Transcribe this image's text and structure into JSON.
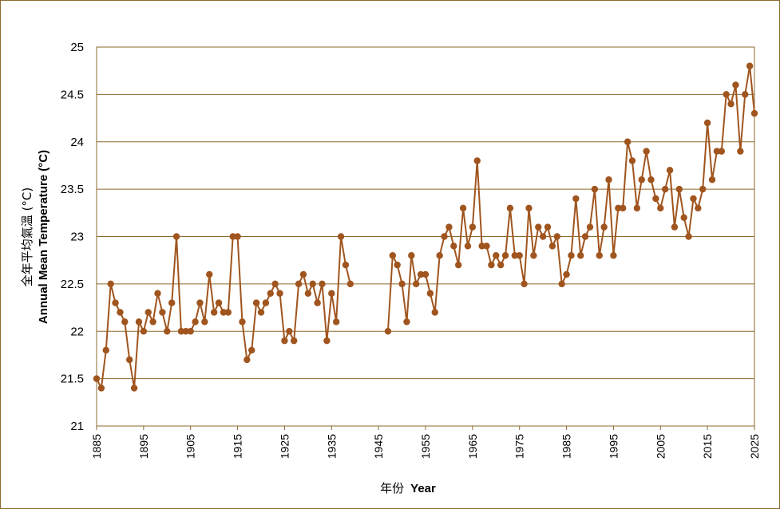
{
  "chart_data": {
    "type": "line",
    "xlabel_zh": "年份",
    "xlabel_en": "Year",
    "ylabel_zh": "全年平均氣溫 (°C)",
    "ylabel_en": "Annual Mean Temperature (°C)",
    "xlim": [
      1885,
      2025
    ],
    "ylim": [
      21,
      25
    ],
    "x_ticks": [
      "1885",
      "1895",
      "1905",
      "1915",
      "1925",
      "1935",
      "1945",
      "1955",
      "1965",
      "1975",
      "1985",
      "1995",
      "2005",
      "2015",
      "2025"
    ],
    "y_ticks": [
      "21",
      "21.5",
      "22",
      "22.5",
      "23",
      "23.5",
      "24",
      "24.5",
      "25"
    ],
    "grid": "horizontal",
    "line_color": "#A0551E",
    "series": [
      {
        "points": [
          [
            1885,
            21.5
          ],
          [
            1886,
            21.4
          ],
          [
            1887,
            21.8
          ],
          [
            1888,
            22.5
          ],
          [
            1889,
            22.3
          ],
          [
            1890,
            22.2
          ],
          [
            1891,
            22.1
          ],
          [
            1892,
            21.7
          ],
          [
            1893,
            21.4
          ],
          [
            1894,
            22.1
          ],
          [
            1895,
            22.0
          ],
          [
            1896,
            22.2
          ],
          [
            1897,
            22.1
          ],
          [
            1898,
            22.4
          ],
          [
            1899,
            22.2
          ],
          [
            1900,
            22.0
          ],
          [
            1901,
            22.3
          ],
          [
            1902,
            23.0
          ],
          [
            1903,
            22.0
          ],
          [
            1904,
            22.0
          ],
          [
            1905,
            22.0
          ],
          [
            1906,
            22.1
          ],
          [
            1907,
            22.3
          ],
          [
            1908,
            22.1
          ],
          [
            1909,
            22.6
          ],
          [
            1910,
            22.2
          ],
          [
            1911,
            22.3
          ],
          [
            1912,
            22.2
          ],
          [
            1913,
            22.2
          ],
          [
            1914,
            23.0
          ],
          [
            1915,
            23.0
          ],
          [
            1916,
            22.1
          ],
          [
            1917,
            21.7
          ],
          [
            1918,
            21.8
          ],
          [
            1919,
            22.3
          ],
          [
            1920,
            22.2
          ],
          [
            1921,
            22.3
          ],
          [
            1922,
            22.4
          ],
          [
            1923,
            22.5
          ],
          [
            1924,
            22.4
          ],
          [
            1925,
            21.9
          ],
          [
            1926,
            22.0
          ],
          [
            1927,
            21.9
          ],
          [
            1928,
            22.5
          ],
          [
            1929,
            22.6
          ],
          [
            1930,
            22.4
          ],
          [
            1931,
            22.5
          ],
          [
            1932,
            22.3
          ],
          [
            1933,
            22.5
          ],
          [
            1934,
            21.9
          ],
          [
            1935,
            22.4
          ],
          [
            1936,
            22.1
          ],
          [
            1937,
            23.0
          ],
          [
            1938,
            22.7
          ],
          [
            1939,
            22.5
          ],
          null,
          [
            1947,
            22.0
          ],
          [
            1948,
            22.8
          ],
          [
            1949,
            22.7
          ],
          [
            1950,
            22.5
          ],
          [
            1951,
            22.1
          ],
          [
            1952,
            22.8
          ],
          [
            1953,
            22.5
          ],
          [
            1954,
            22.6
          ],
          [
            1955,
            22.6
          ],
          [
            1956,
            22.4
          ],
          [
            1957,
            22.2
          ],
          [
            1958,
            22.8
          ],
          [
            1959,
            23.0
          ],
          [
            1960,
            23.1
          ],
          [
            1961,
            22.9
          ],
          [
            1962,
            22.7
          ],
          [
            1963,
            23.3
          ],
          [
            1964,
            22.9
          ],
          [
            1965,
            23.1
          ],
          [
            1966,
            23.8
          ],
          [
            1967,
            22.9
          ],
          [
            1968,
            22.9
          ],
          [
            1969,
            22.7
          ],
          [
            1970,
            22.8
          ],
          [
            1971,
            22.7
          ],
          [
            1972,
            22.8
          ],
          [
            1973,
            23.3
          ],
          [
            1974,
            22.8
          ],
          [
            1975,
            22.8
          ],
          [
            1976,
            22.5
          ],
          [
            1977,
            23.3
          ],
          [
            1978,
            22.8
          ],
          [
            1979,
            23.1
          ],
          [
            1980,
            23.0
          ],
          [
            1981,
            23.1
          ],
          [
            1982,
            22.9
          ],
          [
            1983,
            23.0
          ],
          [
            1984,
            22.5
          ],
          [
            1985,
            22.6
          ],
          [
            1986,
            22.8
          ],
          [
            1987,
            23.4
          ],
          [
            1988,
            22.8
          ],
          [
            1989,
            23.0
          ],
          [
            1990,
            23.1
          ],
          [
            1991,
            23.5
          ],
          [
            1992,
            22.8
          ],
          [
            1993,
            23.1
          ],
          [
            1994,
            23.6
          ],
          [
            1995,
            22.8
          ],
          [
            1996,
            23.3
          ],
          [
            1997,
            23.3
          ],
          [
            1998,
            24.0
          ],
          [
            1999,
            23.8
          ],
          [
            2000,
            23.3
          ],
          [
            2001,
            23.6
          ],
          [
            2002,
            23.9
          ],
          [
            2003,
            23.6
          ],
          [
            2004,
            23.4
          ],
          [
            2005,
            23.3
          ],
          [
            2006,
            23.5
          ],
          [
            2007,
            23.7
          ],
          [
            2008,
            23.1
          ],
          [
            2009,
            23.5
          ],
          [
            2010,
            23.2
          ],
          [
            2011,
            23.0
          ],
          [
            2012,
            23.4
          ],
          [
            2013,
            23.3
          ],
          [
            2014,
            23.5
          ],
          [
            2015,
            24.2
          ],
          [
            2016,
            23.6
          ],
          [
            2017,
            23.9
          ],
          [
            2018,
            23.9
          ],
          [
            2019,
            24.5
          ],
          [
            2020,
            24.4
          ],
          [
            2021,
            24.6
          ],
          [
            2022,
            23.9
          ],
          [
            2023,
            24.5
          ],
          [
            2024,
            24.8
          ],
          [
            2025,
            24.3
          ]
        ]
      }
    ]
  }
}
